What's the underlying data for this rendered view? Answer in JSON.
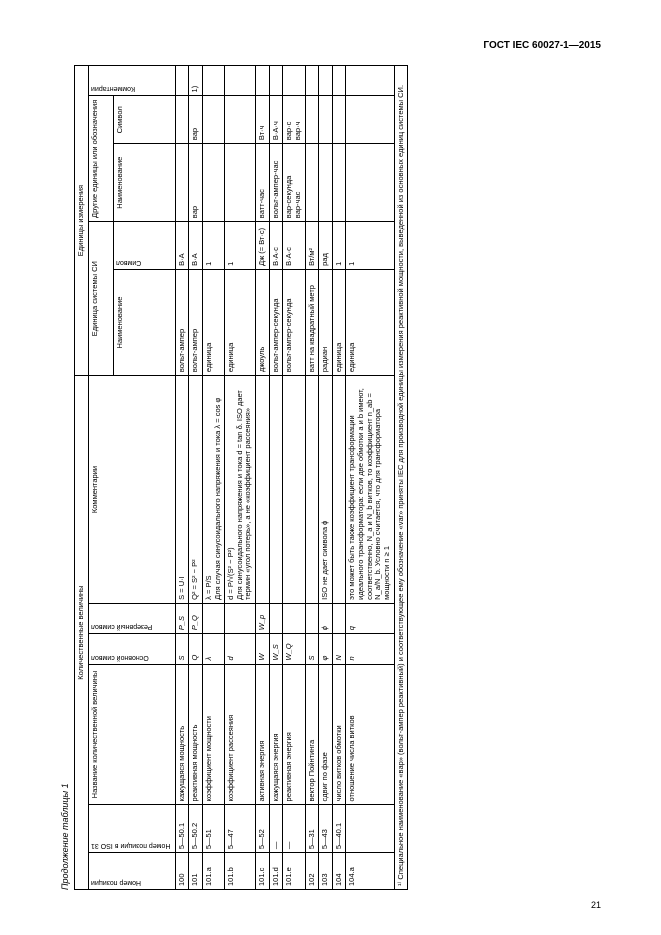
{
  "doc": {
    "standard": "ГОСТ IEC 60027-1—2015",
    "caption": "Продолжение таблицы 1",
    "page_number": "21"
  },
  "tbl": {
    "superhdr": {
      "left": "Количественные величины",
      "right": "Единицы измерения"
    },
    "hdr2": {
      "si": "Единица системы СИ",
      "other": "Другие единицы или обозначения"
    },
    "cols": {
      "pos": "Номер позиции",
      "iso": "Номер позиции в ISO 31",
      "name": "Название количественной величины",
      "mainsym": "Основной символ",
      "ressym": "Резервный символ",
      "comment_q": "Комментарии",
      "si_name": "Наименование",
      "si_sym": "Символ",
      "ou_name": "Наименование",
      "ou_sym": "Символ",
      "comment_u": "Комментарии"
    },
    "rows": [
      {
        "pos": "100",
        "iso": "5—50.1",
        "name": "кажущаяся мощность",
        "main": "S",
        "res": "P_S",
        "comm": "S = U·I",
        "si_name": "вольт-ампер",
        "si_sym": "В·А",
        "ou_name": "",
        "ou_sym": "",
        "cu": ""
      },
      {
        "pos": "101",
        "iso": "5—50.2",
        "name": "реактивная мощность",
        "main": "Q",
        "res": "P_Q",
        "comm": "Q² = S² − P²",
        "si_name": "вольт-ампер",
        "si_sym": "В·А",
        "ou_name": "вар",
        "ou_sym": "вар",
        "cu": "1)"
      },
      {
        "pos": "101.a",
        "iso": "5—51",
        "name": "коэффициент мощности",
        "main": "λ",
        "res": "",
        "comm": "λ = P/S\nДля случая синусоидального напряжения и тока λ = cos φ",
        "si_name": "единица",
        "si_sym": "1",
        "ou_name": "",
        "ou_sym": "",
        "cu": ""
      },
      {
        "pos": "101.b",
        "iso": "5—47",
        "name": "коэффициент рассеяния",
        "main": "d",
        "res": "",
        "comm": "d = P/√(S² − P²)\nДля синусоидального напряжения и тока d = tan δ. ISO дает термин «угол потерь», а не «коэффициент рассеяния»",
        "si_name": "единица",
        "si_sym": "1",
        "ou_name": "",
        "ou_sym": "",
        "cu": ""
      },
      {
        "pos": "101.c",
        "iso": "5—52",
        "name": "активная энергия",
        "main": "W",
        "res": "W_p",
        "comm": "",
        "si_name": "джоуль",
        "si_sym": "Дж (= Вт·с)",
        "ou_name": "ватт-час",
        "ou_sym": "Вт·ч",
        "cu": ""
      },
      {
        "pos": "101.d",
        "iso": "—",
        "name": "кажущаяся энергия",
        "main": "W_S",
        "res": "",
        "comm": "",
        "si_name": "вольт-ампер-секунда",
        "si_sym": "В·А·с",
        "ou_name": "вольт-ампер-час",
        "ou_sym": "В·А·ч",
        "cu": ""
      },
      {
        "pos": "101.e",
        "iso": "—",
        "name": "реактивная энергия",
        "main": "W_Q",
        "res": "",
        "comm": "",
        "si_name": "вольт-ампер-секунда",
        "si_sym": "В·А·с",
        "ou_name": "вар-секунда\nвар-час",
        "ou_sym": "вар·с\nвар·ч",
        "cu": ""
      },
      {
        "pos": "102",
        "iso": "5—31",
        "name": "вектор Пойнтинга",
        "main": "S",
        "res": "",
        "comm": "",
        "si_name": "ватт на квадратный метр",
        "si_sym": "Вт/м²",
        "ou_name": "",
        "ou_sym": "",
        "cu": ""
      },
      {
        "pos": "103",
        "iso": "5—43",
        "name": "сдвиг по фазе",
        "main": "φ",
        "res": "ϕ",
        "comm": "ISO не дает символа ϕ",
        "si_name": "радиан",
        "si_sym": "рад",
        "ou_name": "",
        "ou_sym": "",
        "cu": ""
      },
      {
        "pos": "104",
        "iso": "5—40.1",
        "name": "число витков обмотки",
        "main": "N",
        "res": "",
        "comm": "",
        "si_name": "единица",
        "si_sym": "1",
        "ou_name": "",
        "ou_sym": "",
        "cu": ""
      },
      {
        "pos": "104.a",
        "iso": "",
        "name": "отношение числа витков",
        "main": "n",
        "res": "q",
        "comm": "это может быть также коэффициент трансформации идеального трансформатора: если две обмотки a и b имеют, соответственно, N_a и N_b витков, то коэффициент n_ab = N_a/N_b. Условно считается, что для трансформатора мощности n ≥ 1",
        "si_name": "единица",
        "si_sym": "1",
        "ou_name": "",
        "ou_sym": "",
        "cu": ""
      }
    ],
    "footnote": "¹⁾ Специальное наименование «вар» (вольт-ампер реактивный) и соответствующее ему обозначение «var» приняты IEC для производной единицы измерения реактивной мощности, выведенной из основных единиц системы СИ."
  }
}
